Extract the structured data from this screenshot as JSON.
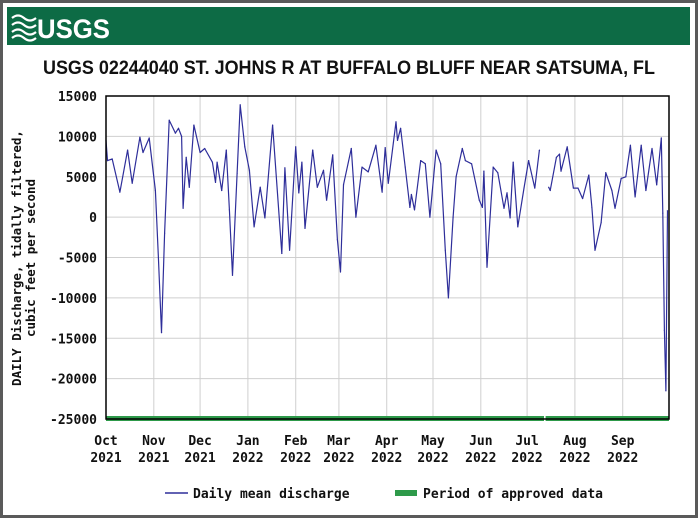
{
  "header": {
    "logo_text": "USGS",
    "brand_color": "#0d6b45"
  },
  "chart_data": {
    "type": "line",
    "title": "USGS 02244040 ST. JOHNS R AT BUFFALO BLUFF NEAR SATSUMA, FL",
    "ylabel_lines": [
      "DAILY Discharge, tidally filtered,",
      "cubic feet per second"
    ],
    "xlabel": "",
    "xlim": [
      "2021-10-01",
      "2022-09-30"
    ],
    "ylim": [
      -25000,
      15000
    ],
    "yticks": [
      15000,
      10000,
      5000,
      0,
      -5000,
      -10000,
      -15000,
      -20000,
      -25000
    ],
    "xticks": [
      {
        "date": "2021-10-01",
        "month": "Oct",
        "year": "2021"
      },
      {
        "date": "2021-11-01",
        "month": "Nov",
        "year": "2021"
      },
      {
        "date": "2021-12-01",
        "month": "Dec",
        "year": "2021"
      },
      {
        "date": "2022-01-01",
        "month": "Jan",
        "year": "2022"
      },
      {
        "date": "2022-02-01",
        "month": "Feb",
        "year": "2022"
      },
      {
        "date": "2022-03-01",
        "month": "Mar",
        "year": "2022"
      },
      {
        "date": "2022-04-01",
        "month": "Apr",
        "year": "2022"
      },
      {
        "date": "2022-05-01",
        "month": "May",
        "year": "2022"
      },
      {
        "date": "2022-06-01",
        "month": "Jun",
        "year": "2022"
      },
      {
        "date": "2022-07-01",
        "month": "Jul",
        "year": "2022"
      },
      {
        "date": "2022-08-01",
        "month": "Aug",
        "year": "2022"
      },
      {
        "date": "2022-09-01",
        "month": "Sep",
        "year": "2022"
      }
    ],
    "grid": true,
    "legend_position": "bottom",
    "series": [
      {
        "name": "Daily mean discharge",
        "color": "#2e2e9a",
        "points": [
          [
            "2021-10-01",
            9500
          ],
          [
            "2021-10-02",
            7000
          ],
          [
            "2021-10-05",
            7200
          ],
          [
            "2021-10-10",
            3100
          ],
          [
            "2021-10-15",
            8300
          ],
          [
            "2021-10-18",
            4200
          ],
          [
            "2021-10-23",
            9900
          ],
          [
            "2021-10-25",
            8000
          ],
          [
            "2021-10-29",
            9800
          ],
          [
            "2021-11-02",
            3300
          ],
          [
            "2021-11-04",
            -5000
          ],
          [
            "2021-11-06",
            -14300
          ],
          [
            "2021-11-08",
            -2000
          ],
          [
            "2021-11-11",
            12000
          ],
          [
            "2021-11-15",
            10400
          ],
          [
            "2021-11-17",
            11000
          ],
          [
            "2021-11-19",
            10000
          ],
          [
            "2021-11-20",
            1100
          ],
          [
            "2021-11-22",
            7400
          ],
          [
            "2021-11-24",
            3700
          ],
          [
            "2021-11-27",
            11400
          ],
          [
            "2021-12-01",
            8000
          ],
          [
            "2021-12-04",
            8500
          ],
          [
            "2021-12-09",
            6800
          ],
          [
            "2021-12-11",
            4300
          ],
          [
            "2021-12-12",
            6800
          ],
          [
            "2021-12-15",
            3300
          ],
          [
            "2021-12-18",
            8300
          ],
          [
            "2021-12-20",
            900
          ],
          [
            "2021-12-22",
            -7200
          ],
          [
            "2021-12-25",
            5400
          ],
          [
            "2021-12-27",
            13900
          ],
          [
            "2021-12-30",
            8700
          ],
          [
            "2022-01-02",
            5800
          ],
          [
            "2022-01-05",
            -1200
          ],
          [
            "2022-01-09",
            3700
          ],
          [
            "2022-01-12",
            -100
          ],
          [
            "2022-01-17",
            11400
          ],
          [
            "2022-01-23",
            -4500
          ],
          [
            "2022-01-25",
            6100
          ],
          [
            "2022-01-28",
            -4100
          ],
          [
            "2022-02-01",
            8700
          ],
          [
            "2022-02-03",
            3000
          ],
          [
            "2022-02-05",
            6800
          ],
          [
            "2022-02-07",
            -1400
          ],
          [
            "2022-02-12",
            8300
          ],
          [
            "2022-02-15",
            3700
          ],
          [
            "2022-02-19",
            5800
          ],
          [
            "2022-02-21",
            2100
          ],
          [
            "2022-02-25",
            7700
          ],
          [
            "2022-02-28",
            -2800
          ],
          [
            "2022-03-02",
            -6800
          ],
          [
            "2022-03-04",
            4000
          ],
          [
            "2022-03-09",
            8500
          ],
          [
            "2022-03-12",
            0
          ],
          [
            "2022-03-16",
            6200
          ],
          [
            "2022-03-20",
            5600
          ],
          [
            "2022-03-25",
            8900
          ],
          [
            "2022-03-29",
            3100
          ],
          [
            "2022-03-31",
            8600
          ],
          [
            "2022-04-02",
            4200
          ],
          [
            "2022-04-07",
            11800
          ],
          [
            "2022-04-08",
            9500
          ],
          [
            "2022-04-10",
            11000
          ],
          [
            "2022-04-13",
            6200
          ],
          [
            "2022-04-16",
            1200
          ],
          [
            "2022-04-17",
            2800
          ],
          [
            "2022-04-19",
            900
          ],
          [
            "2022-04-23",
            7000
          ],
          [
            "2022-04-26",
            6600
          ],
          [
            "2022-04-29",
            0
          ],
          [
            "2022-05-03",
            8300
          ],
          [
            "2022-05-06",
            6600
          ],
          [
            "2022-05-09",
            -4100
          ],
          [
            "2022-05-11",
            -10000
          ],
          [
            "2022-05-14",
            0
          ],
          [
            "2022-05-16",
            5000
          ],
          [
            "2022-05-20",
            8500
          ],
          [
            "2022-05-22",
            7000
          ],
          [
            "2022-05-26",
            6600
          ],
          [
            "2022-05-31",
            2100
          ],
          [
            "2022-06-02",
            1200
          ],
          [
            "2022-06-03",
            5700
          ],
          [
            "2022-06-05",
            -6200
          ],
          [
            "2022-06-09",
            6200
          ],
          [
            "2022-06-12",
            5500
          ],
          [
            "2022-06-16",
            1100
          ],
          [
            "2022-06-18",
            3000
          ],
          [
            "2022-06-20",
            -100
          ],
          [
            "2022-06-22",
            6800
          ],
          [
            "2022-06-25",
            -1200
          ],
          [
            "2022-06-29",
            3600
          ],
          [
            "2022-07-02",
            7000
          ],
          [
            "2022-07-06",
            3600
          ],
          [
            "2022-07-09",
            8300
          ],
          [
            "2022-07-12",
            null
          ],
          [
            "2022-07-15",
            3700
          ],
          [
            "2022-07-16",
            3300
          ],
          [
            "2022-07-20",
            7400
          ],
          [
            "2022-07-22",
            7800
          ],
          [
            "2022-07-23",
            5700
          ],
          [
            "2022-07-27",
            8700
          ],
          [
            "2022-07-31",
            3600
          ],
          [
            "2022-08-03",
            3600
          ],
          [
            "2022-08-06",
            2300
          ],
          [
            "2022-08-10",
            5200
          ],
          [
            "2022-08-12",
            1200
          ],
          [
            "2022-08-14",
            -4100
          ],
          [
            "2022-08-18",
            -700
          ],
          [
            "2022-08-21",
            5500
          ],
          [
            "2022-08-25",
            3300
          ],
          [
            "2022-08-27",
            1100
          ],
          [
            "2022-08-31",
            4800
          ],
          [
            "2022-09-03",
            5000
          ],
          [
            "2022-09-06",
            8900
          ],
          [
            "2022-09-09",
            2500
          ],
          [
            "2022-09-13",
            8900
          ],
          [
            "2022-09-16",
            3300
          ],
          [
            "2022-09-20",
            8500
          ],
          [
            "2022-09-23",
            4000
          ],
          [
            "2022-09-26",
            9800
          ],
          [
            "2022-09-27",
            500
          ],
          [
            "2022-09-28",
            -14000
          ],
          [
            "2022-09-29",
            -21500
          ],
          [
            "2022-09-30",
            800
          ]
        ]
      },
      {
        "name": "Period of approved data",
        "color": "#2e9a4a",
        "periods": [
          [
            "2021-10-01",
            "2022-07-11"
          ],
          [
            "2022-07-13",
            "2022-09-30"
          ]
        ]
      }
    ]
  }
}
